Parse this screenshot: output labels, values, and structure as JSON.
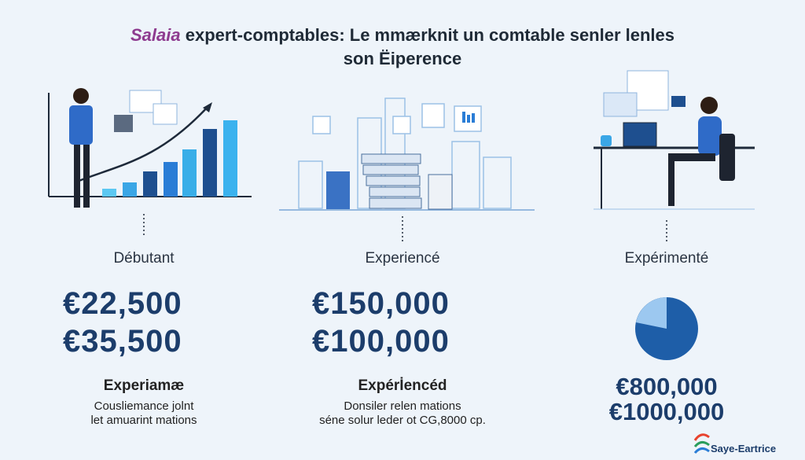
{
  "title": {
    "highlight": "Salaia",
    "line1": "expert-comptables: Le mmærknit un comtable senler lenles",
    "line2": "son Ëiperence"
  },
  "columns": [
    {
      "level": "Débutant",
      "amounts": [
        "€22,500",
        "€35,500"
      ],
      "subtitle": "Experiamæ",
      "description": [
        "Cousliemance jolnt",
        "let amuarint mations"
      ]
    },
    {
      "level": "Experiencé",
      "amounts": [
        "€150,000",
        "€100,000"
      ],
      "subtitle": "Expérİencéd",
      "description": [
        "Donsiler relen mations",
        "séne solur leder ot CG,8000 cp."
      ]
    },
    {
      "level": "Expérimenté",
      "amounts": [
        "€800,000",
        "€1000,000"
      ]
    }
  ],
  "logo": "Saye-Eartrice"
}
